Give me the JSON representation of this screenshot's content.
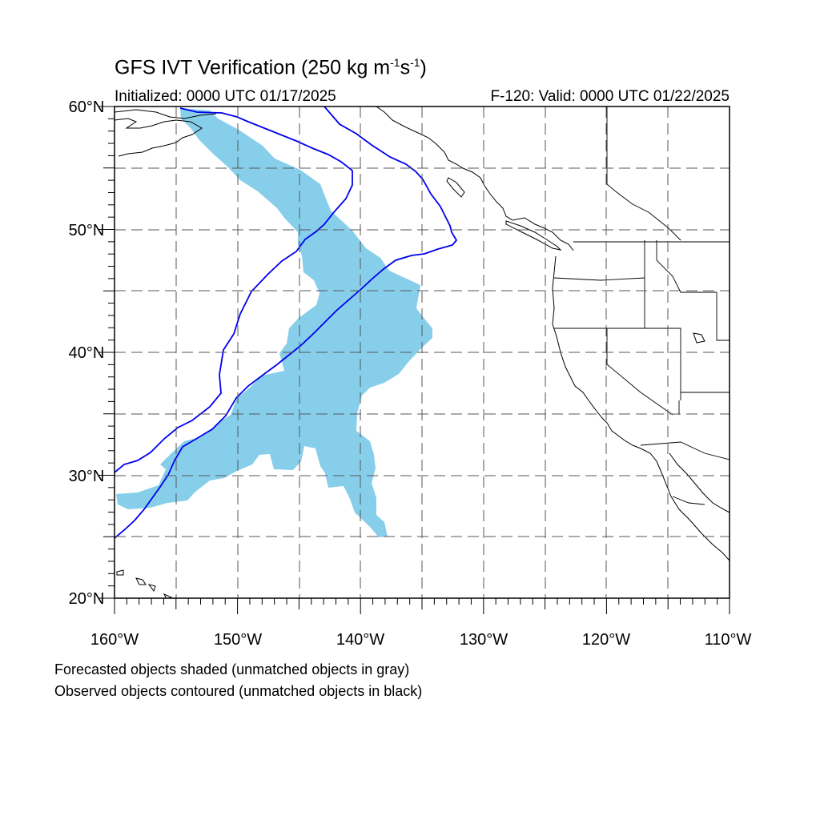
{
  "title": {
    "main": "GFS IVT Verification (250 kg m",
    "exp1": "-1",
    "mid": "s",
    "exp2": "-1",
    "end": ")"
  },
  "subtitle": {
    "initialized": "Initialized: 0000 UTC 01/17/2025",
    "valid": "F-120: Valid: 0000 UTC 01/22/2025"
  },
  "map": {
    "extent": {
      "lon": [
        -160,
        -110
      ],
      "lat": [
        20,
        60
      ]
    },
    "lon_labels": [
      "160°W",
      "150°W",
      "140°W",
      "130°W",
      "120°W",
      "110°W"
    ],
    "lat_labels": [
      "20°N",
      "30°N",
      "40°N",
      "50°N",
      "60°N"
    ],
    "colors": {
      "forecast_fill": "#87ceeb",
      "observed_contour": "#0000ee",
      "coastline": "#000000",
      "grid": "#555555"
    }
  },
  "legend": {
    "line1": "Forecasted objects shaded (unmatched objects in gray)",
    "line2": "Observed objects contoured (unmatched objects in black)"
  }
}
